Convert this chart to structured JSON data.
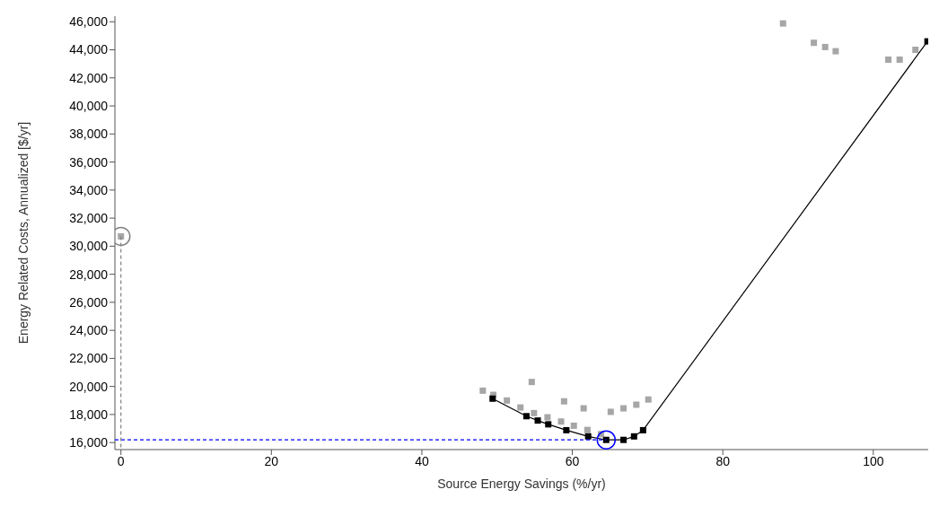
{
  "chart_data": {
    "type": "scatter",
    "xlabel": "Source Energy Savings (%/yr)",
    "ylabel": "Energy Related Costs, Annualized [$/yr]",
    "xlim": [
      -0.8,
      107.3
    ],
    "ylim": [
      15500,
      46400
    ],
    "xticks": [
      0,
      20,
      40,
      60,
      80,
      100
    ],
    "yticks": [
      {
        "value": 16000,
        "label": "16,000"
      },
      {
        "value": 18000,
        "label": "18,000"
      },
      {
        "value": 20000,
        "label": "20,000"
      },
      {
        "value": 22000,
        "label": "22,000"
      },
      {
        "value": 24000,
        "label": "24,000"
      },
      {
        "value": 26000,
        "label": "26,000"
      },
      {
        "value": 28000,
        "label": "28,000"
      },
      {
        "value": 30000,
        "label": "30,000"
      },
      {
        "value": 32000,
        "label": "32,000"
      },
      {
        "value": 34000,
        "label": "34,000"
      },
      {
        "value": 36000,
        "label": "36,000"
      },
      {
        "value": 38000,
        "label": "38,000"
      },
      {
        "value": 40000,
        "label": "40,000"
      },
      {
        "value": 42000,
        "label": "42,000"
      },
      {
        "value": 44000,
        "label": "44,000"
      },
      {
        "value": 46000,
        "label": "46,000"
      }
    ],
    "grid": false,
    "legend": false,
    "series": [
      {
        "marker": "square",
        "color": "#a6a6a6",
        "x": [
          0,
          48.1,
          49.5,
          51.3,
          53.1,
          54.6,
          54.9,
          56.7,
          58.5,
          58.9,
          60.2,
          61.5,
          62.0,
          63.8,
          65.1,
          66.8,
          68.5,
          70.1,
          88,
          92.1,
          93.6,
          95,
          102,
          103.5,
          105.6
        ],
        "values": [
          30700,
          19700,
          19400,
          19000,
          18500,
          20320,
          18100,
          17800,
          17500,
          18940,
          17200,
          18440,
          16900,
          16600,
          18190,
          18440,
          18700,
          19070,
          45880,
          44500,
          44200,
          43900,
          43300,
          43300,
          44000
        ]
      },
      {
        "type": "line",
        "marker": "square",
        "line_style": "solid",
        "color": "#000000",
        "x": [
          49.4,
          53.9,
          55.4,
          56.8,
          59.2,
          62.1,
          64.5,
          66.8,
          68.2,
          69.4,
          107.2
        ],
        "values": [
          19130,
          17880,
          17570,
          17300,
          16880,
          16440,
          16190,
          16190,
          16440,
          16880,
          44600
        ]
      },
      {
        "type": "line",
        "marker": "none",
        "line_style": "dashed",
        "color": "#0000ff",
        "x": [
          -0.8,
          64.5
        ],
        "values": [
          16190,
          16190
        ]
      },
      {
        "type": "line",
        "marker": "none",
        "line_style": "dashed",
        "color": "#808080",
        "x": [
          0,
          0
        ],
        "values": [
          30700,
          15500
        ]
      },
      {
        "marker": "circle",
        "color": "#0000ff",
        "x": [
          64.5
        ],
        "values": [
          16190
        ]
      },
      {
        "marker": "circle",
        "color": "#808080",
        "x": [
          0
        ],
        "values": [
          30700
        ]
      }
    ]
  }
}
